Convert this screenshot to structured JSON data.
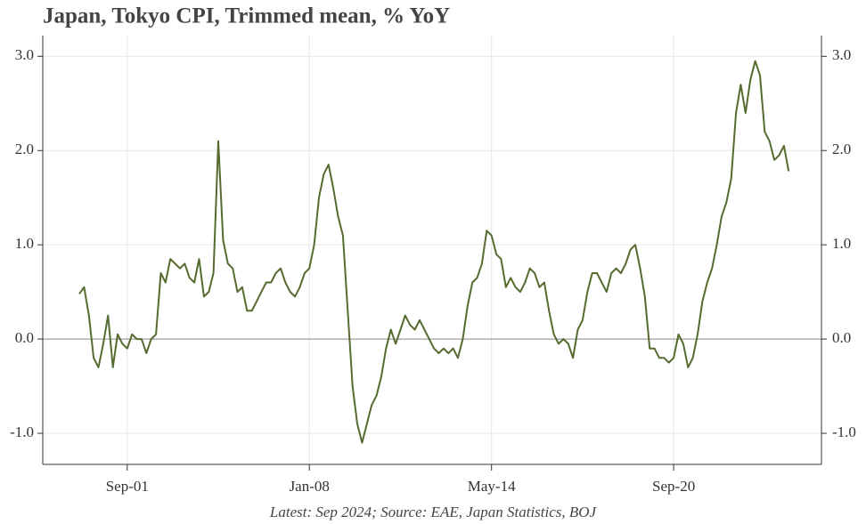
{
  "chart_data": {
    "type": "line",
    "title": "Japan, Tokyo CPI, Trimmed mean, % YoY",
    "note": "Latest: Sep 2024; Source: EAE, Japan Statistics, BOJ",
    "categories": [
      null,
      null,
      null,
      null,
      null,
      null,
      null,
      null,
      null,
      null,
      "Sep-01",
      null,
      null,
      null,
      null,
      null,
      null,
      null,
      null,
      null,
      null,
      null,
      null,
      null,
      null,
      null,
      null,
      null,
      null,
      null,
      null,
      null,
      null,
      null,
      null,
      null,
      null,
      null,
      null,
      null,
      null,
      null,
      null,
      null,
      null,
      null,
      null,
      null,
      "Jan-08",
      null,
      null,
      null,
      null,
      null,
      null,
      null,
      null,
      null,
      null,
      null,
      null,
      null,
      null,
      null,
      null,
      null,
      null,
      null,
      null,
      null,
      null,
      null,
      null,
      null,
      null,
      null,
      null,
      null,
      null,
      null,
      null,
      null,
      null,
      null,
      null,
      null,
      "May-14",
      null,
      null,
      null,
      null,
      null,
      null,
      null,
      null,
      null,
      null,
      null,
      null,
      null,
      null,
      null,
      null,
      null,
      null,
      null,
      null,
      null,
      null,
      null,
      null,
      null,
      null,
      null,
      null,
      null,
      null,
      null,
      null,
      null,
      null,
      null,
      null,
      null,
      "Sep-20",
      null,
      null,
      null,
      null,
      null,
      null,
      null,
      null,
      null,
      null,
      null,
      null,
      null,
      null,
      null,
      null,
      null,
      null,
      null,
      null,
      null,
      null,
      null,
      null
    ],
    "series": [
      {
        "color": "#556b2f",
        "values": [
          0.48,
          0.55,
          0.25,
          -0.2,
          -0.3,
          -0.05,
          0.25,
          -0.3,
          0.05,
          -0.05,
          -0.1,
          0.05,
          0.0,
          0.0,
          -0.15,
          0.0,
          0.05,
          0.7,
          0.6,
          0.85,
          0.8,
          0.75,
          0.8,
          0.65,
          0.6,
          0.85,
          0.45,
          0.5,
          0.7,
          2.1,
          1.05,
          0.8,
          0.75,
          0.5,
          0.55,
          0.3,
          0.3,
          0.4,
          0.5,
          0.6,
          0.6,
          0.7,
          0.75,
          0.6,
          0.5,
          0.45,
          0.55,
          0.7,
          0.75,
          1.0,
          1.5,
          1.75,
          1.85,
          1.6,
          1.3,
          1.1,
          0.3,
          -0.5,
          -0.9,
          -1.1,
          -0.9,
          -0.7,
          -0.6,
          -0.4,
          -0.1,
          0.1,
          -0.05,
          0.1,
          0.25,
          0.15,
          0.1,
          0.2,
          0.1,
          0.0,
          -0.1,
          -0.15,
          -0.1,
          -0.15,
          -0.1,
          -0.2,
          0.0,
          0.35,
          0.6,
          0.65,
          0.8,
          1.15,
          1.1,
          0.9,
          0.85,
          0.55,
          0.65,
          0.55,
          0.5,
          0.6,
          0.75,
          0.7,
          0.55,
          0.6,
          0.3,
          0.05,
          -0.05,
          0.0,
          -0.05,
          -0.2,
          0.1,
          0.2,
          0.5,
          0.7,
          0.7,
          0.6,
          0.5,
          0.7,
          0.75,
          0.7,
          0.8,
          0.95,
          1.0,
          0.75,
          0.45,
          -0.1,
          -0.1,
          -0.2,
          -0.2,
          -0.25,
          -0.2,
          0.05,
          -0.05,
          -0.3,
          -0.2,
          0.05,
          0.4,
          0.6,
          0.75,
          1.0,
          1.3,
          1.45,
          1.7,
          2.4,
          2.7,
          2.4,
          2.75,
          2.95,
          2.8,
          2.2,
          2.1,
          1.9,
          1.95,
          2.05,
          1.78
        ]
      }
    ],
    "ylim": [
      -1.33,
      3.22
    ],
    "yticks": [
      {
        "value": -1,
        "label": "-1.0"
      },
      {
        "value": 0,
        "label": "0.0"
      },
      {
        "value": 1,
        "label": "1.0"
      },
      {
        "value": 2,
        "label": "2.0"
      },
      {
        "value": 3,
        "label": "3.0"
      }
    ],
    "grid": true
  }
}
